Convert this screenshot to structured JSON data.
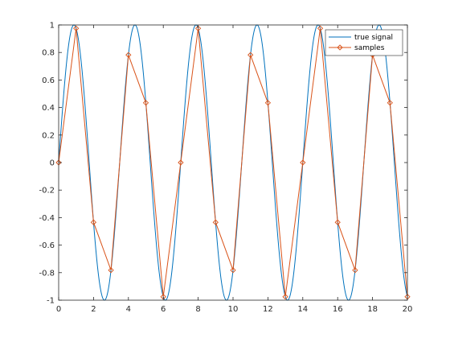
{
  "chart_data": {
    "type": "line",
    "title": "",
    "xlabel": "",
    "ylabel": "",
    "xlim": [
      0,
      20
    ],
    "ylim": [
      -1,
      1
    ],
    "xticks": [
      0,
      2,
      4,
      6,
      8,
      10,
      12,
      14,
      16,
      18,
      20
    ],
    "yticks": [
      -1,
      -0.8,
      -0.6,
      -0.4,
      -0.2,
      0,
      0.2,
      0.4,
      0.6,
      0.8,
      1
    ],
    "xtick_labels": [
      "0",
      "2",
      "4",
      "6",
      "8",
      "10",
      "12",
      "14",
      "16",
      "18",
      "20"
    ],
    "ytick_labels": [
      "-1",
      "-0.8",
      "-0.6",
      "-0.4",
      "-0.2",
      "0",
      "0.2",
      "0.4",
      "0.6",
      "0.8",
      "1"
    ],
    "grid": false,
    "legend_position": "top-right",
    "series": [
      {
        "name": "true signal",
        "color": "#0072BD",
        "marker": "none",
        "function": "sin",
        "frequency_cycles_per_unit": 0.2857,
        "amplitude": 1,
        "x_range": [
          0,
          20
        ]
      },
      {
        "name": "samples",
        "color": "#D95319",
        "marker": "diamond",
        "x": [
          0,
          1,
          2,
          3,
          4,
          5,
          6,
          7,
          8,
          9,
          10,
          11,
          12,
          13,
          14,
          15,
          16,
          17,
          18,
          19,
          20
        ],
        "y": [
          0,
          0.975,
          -0.434,
          -0.782,
          0.782,
          0.434,
          -0.975,
          0,
          0.975,
          -0.434,
          -0.782,
          0.782,
          0.434,
          -0.975,
          0,
          0.975,
          -0.434,
          -0.782,
          0.782,
          0.434,
          -0.975
        ]
      }
    ]
  }
}
